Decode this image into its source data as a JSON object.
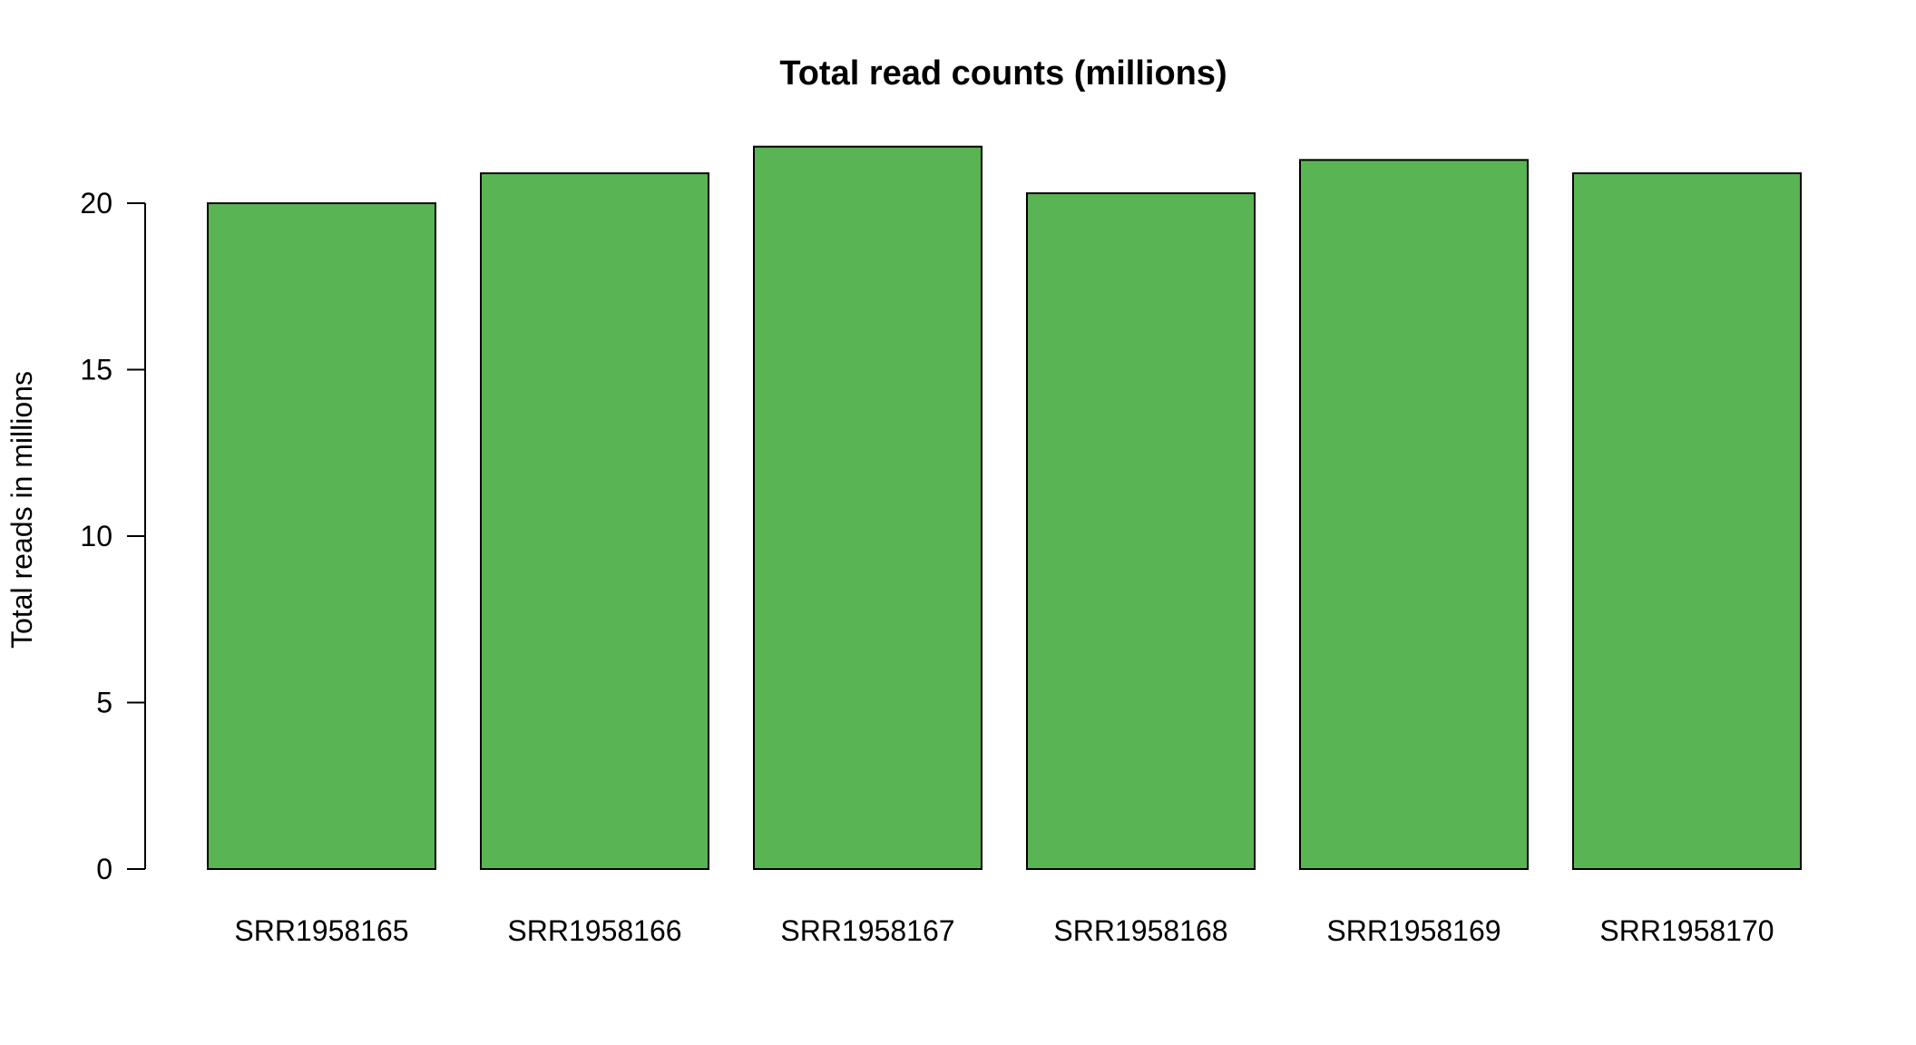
{
  "chart_data": {
    "type": "bar",
    "title": "Total read counts (millions)",
    "xlabel": "",
    "ylabel": "Total reads in millions",
    "categories": [
      "SRR1958165",
      "SRR1958166",
      "SRR1958167",
      "SRR1958168",
      "SRR1958169",
      "SRR1958170"
    ],
    "values": [
      20.0,
      20.9,
      21.7,
      20.3,
      21.3,
      20.9
    ],
    "ylim": [
      0,
      21.8
    ],
    "yticks": [
      0,
      5,
      10,
      15,
      20
    ],
    "bar_color": "#59b453",
    "grid": false,
    "legend": "none"
  }
}
